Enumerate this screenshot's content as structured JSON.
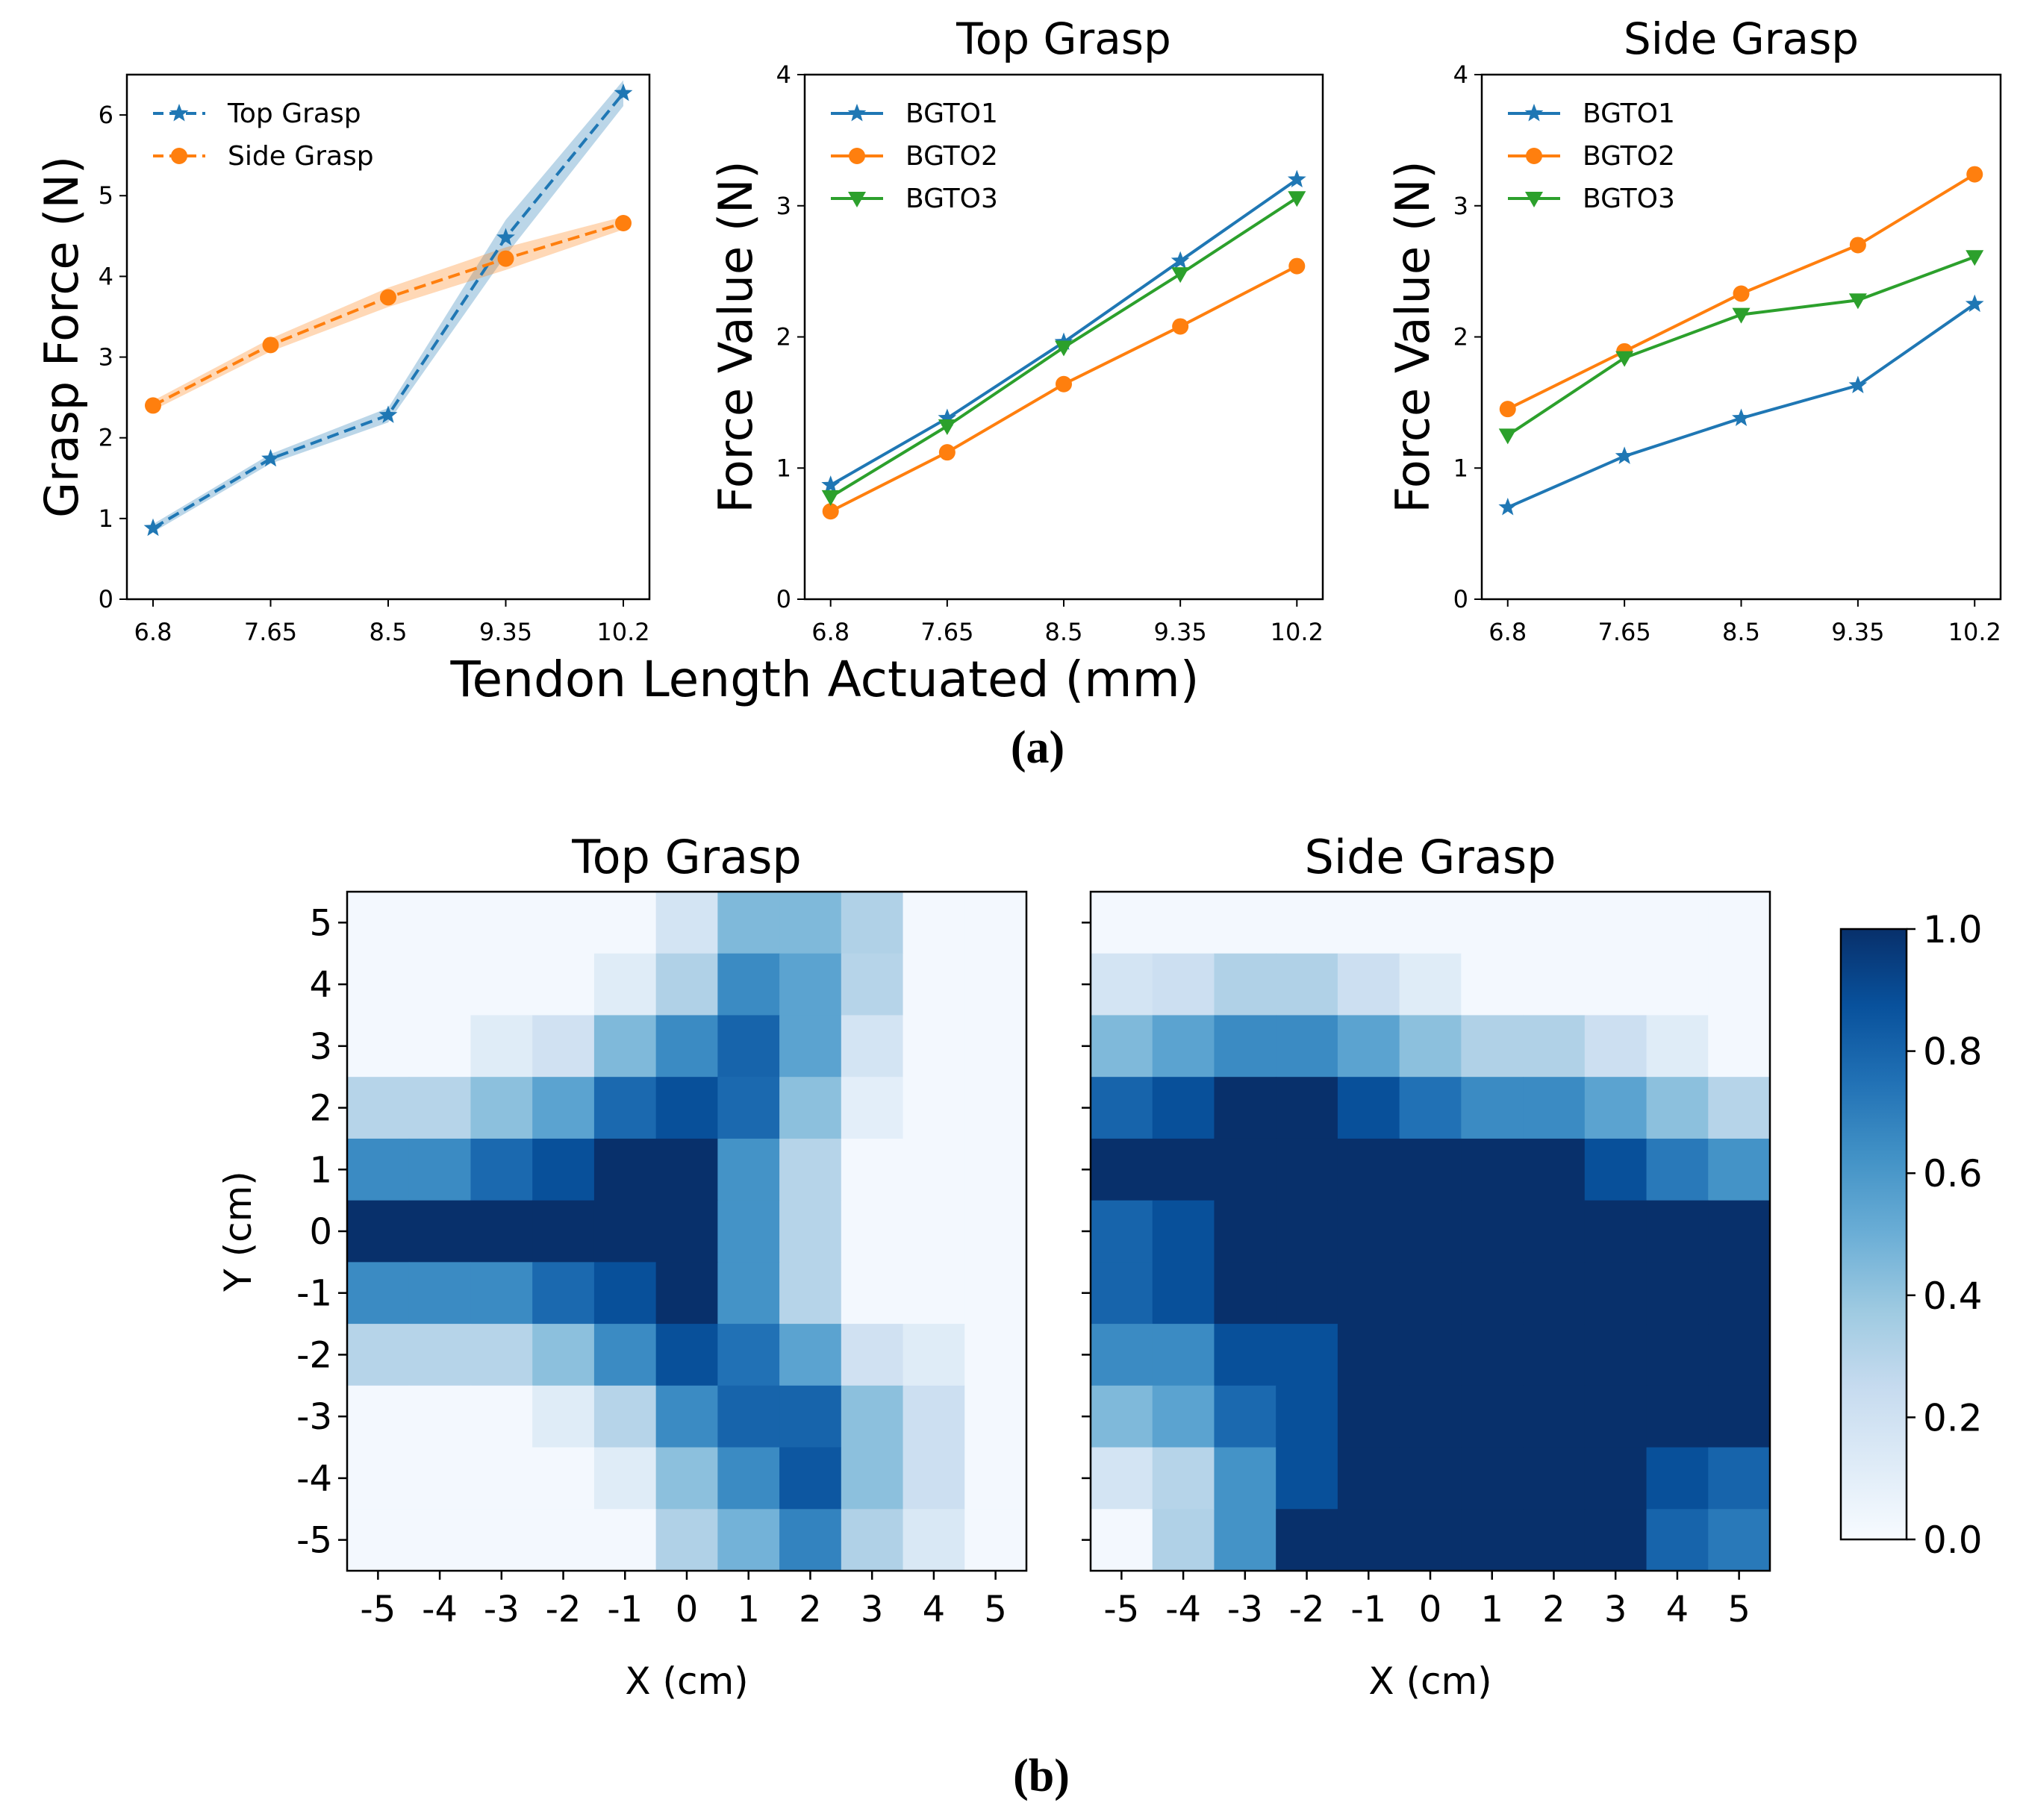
{
  "chart_data": [
    {
      "id": "grasp_force",
      "type": "line",
      "title": "",
      "xlabel": "",
      "ylabel": "Grasp Force (N)",
      "categories": [
        "6.8",
        "7.65",
        "8.5",
        "9.35",
        "10.2"
      ],
      "ylim": [
        0,
        6.5
      ],
      "yticks": [
        "0",
        "1",
        "2",
        "3",
        "4",
        "5",
        "6"
      ],
      "legend_position": "upper-left",
      "series": [
        {
          "name": "Top Grasp",
          "values": [
            0.88,
            1.74,
            2.28,
            4.48,
            6.27
          ],
          "band": [
            0.05,
            0.06,
            0.09,
            0.22,
            0.16
          ],
          "color": "#1f77b4",
          "marker": "star",
          "dashed": true
        },
        {
          "name": "Side Grasp",
          "values": [
            2.4,
            3.15,
            3.74,
            4.22,
            4.66
          ],
          "band": [
            0.06,
            0.08,
            0.12,
            0.14,
            0.08
          ],
          "color": "#ff7f0e",
          "marker": "circle",
          "dashed": true
        }
      ]
    },
    {
      "id": "top_grasp_fingers",
      "type": "line",
      "title": "Top Grasp",
      "xlabel": "",
      "ylabel": "Force Value (N)",
      "categories": [
        "6.8",
        "7.65",
        "8.5",
        "9.35",
        "10.2"
      ],
      "ylim": [
        0,
        4
      ],
      "yticks": [
        "0",
        "1",
        "2",
        "3",
        "4"
      ],
      "legend_position": "upper-left",
      "series": [
        {
          "name": "BGTO1",
          "values": [
            0.87,
            1.38,
            1.96,
            2.58,
            3.2
          ],
          "color": "#1f77b4",
          "marker": "star"
        },
        {
          "name": "BGTO2",
          "values": [
            0.67,
            1.12,
            1.64,
            2.08,
            2.54
          ],
          "color": "#ff7f0e",
          "marker": "circle"
        },
        {
          "name": "BGTO3",
          "values": [
            0.78,
            1.32,
            1.92,
            2.48,
            3.06
          ],
          "color": "#2ca02c",
          "marker": "tri_down"
        }
      ]
    },
    {
      "id": "side_grasp_fingers",
      "type": "line",
      "title": "Side Grasp",
      "xlabel": "",
      "ylabel": "Force Value (N)",
      "categories": [
        "6.8",
        "7.65",
        "8.5",
        "9.35",
        "10.2"
      ],
      "ylim": [
        0,
        4
      ],
      "yticks": [
        "0",
        "1",
        "2",
        "3",
        "4"
      ],
      "legend_position": "upper-left",
      "series": [
        {
          "name": "BGTO1",
          "values": [
            0.7,
            1.09,
            1.38,
            1.63,
            2.25
          ],
          "color": "#1f77b4",
          "marker": "star"
        },
        {
          "name": "BGTO2",
          "values": [
            1.45,
            1.89,
            2.33,
            2.7,
            3.24
          ],
          "color": "#ff7f0e",
          "marker": "circle"
        },
        {
          "name": "BGTO3",
          "values": [
            1.25,
            1.84,
            2.17,
            2.28,
            2.61
          ],
          "color": "#2ca02c",
          "marker": "tri_down"
        }
      ]
    },
    {
      "id": "heatmap_top",
      "type": "heatmap",
      "title": "Top Grasp",
      "xlabel": "X (cm)",
      "ylabel": "Y (cm)",
      "x": [
        "-5",
        "-4",
        "-3",
        "-2",
        "-1",
        "0",
        "1",
        "2",
        "3",
        "4",
        "5"
      ],
      "y": [
        "5",
        "4",
        "3",
        "2",
        "1",
        "0",
        "-1",
        "-2",
        "-3",
        "-4",
        "-5"
      ],
      "values": [
        [
          0.02,
          0.02,
          0.02,
          0.02,
          0.02,
          0.18,
          0.45,
          0.45,
          0.32,
          0.02,
          0.02
        ],
        [
          0.02,
          0.02,
          0.02,
          0.02,
          0.12,
          0.32,
          0.65,
          0.55,
          0.3,
          0.02,
          0.02
        ],
        [
          0.02,
          0.02,
          0.12,
          0.2,
          0.45,
          0.65,
          0.8,
          0.55,
          0.18,
          0.02,
          0.02
        ],
        [
          0.3,
          0.3,
          0.42,
          0.55,
          0.78,
          0.88,
          0.78,
          0.42,
          0.1,
          0.02,
          0.02
        ],
        [
          0.65,
          0.65,
          0.78,
          0.88,
          1.0,
          1.0,
          0.62,
          0.3,
          0.02,
          0.02,
          0.02
        ],
        [
          1.0,
          1.0,
          1.0,
          1.0,
          1.0,
          1.0,
          0.62,
          0.3,
          0.02,
          0.02,
          0.02
        ],
        [
          0.65,
          0.65,
          0.65,
          0.78,
          0.88,
          1.0,
          0.62,
          0.3,
          0.02,
          0.02,
          0.02
        ],
        [
          0.3,
          0.3,
          0.3,
          0.42,
          0.65,
          0.88,
          0.75,
          0.55,
          0.2,
          0.12,
          0.02
        ],
        [
          0.02,
          0.02,
          0.02,
          0.12,
          0.3,
          0.65,
          0.8,
          0.8,
          0.42,
          0.22,
          0.02
        ],
        [
          0.02,
          0.02,
          0.02,
          0.02,
          0.12,
          0.42,
          0.65,
          0.85,
          0.42,
          0.22,
          0.02
        ],
        [
          0.02,
          0.02,
          0.02,
          0.02,
          0.02,
          0.32,
          0.48,
          0.68,
          0.32,
          0.15,
          0.02
        ]
      ],
      "vmin": 0,
      "vmax": 1
    },
    {
      "id": "heatmap_side",
      "type": "heatmap",
      "title": "Side Grasp",
      "xlabel": "X (cm)",
      "ylabel": "",
      "x": [
        "-5",
        "-4",
        "-3",
        "-2",
        "-1",
        "0",
        "1",
        "2",
        "3",
        "4",
        "5"
      ],
      "y": [
        "5",
        "4",
        "3",
        "2",
        "1",
        "0",
        "-1",
        "-2",
        "-3",
        "-4",
        "-5"
      ],
      "values": [
        [
          0.02,
          0.02,
          0.02,
          0.02,
          0.02,
          0.02,
          0.02,
          0.02,
          0.02,
          0.02,
          0.02
        ],
        [
          0.18,
          0.22,
          0.32,
          0.32,
          0.22,
          0.12,
          0.02,
          0.02,
          0.02,
          0.02,
          0.02
        ],
        [
          0.45,
          0.55,
          0.65,
          0.65,
          0.55,
          0.42,
          0.32,
          0.32,
          0.22,
          0.12,
          0.02
        ],
        [
          0.8,
          0.88,
          1.0,
          1.0,
          0.88,
          0.75,
          0.65,
          0.65,
          0.55,
          0.42,
          0.3
        ],
        [
          1.0,
          1.0,
          1.0,
          1.0,
          1.0,
          1.0,
          1.0,
          1.0,
          0.88,
          0.72,
          0.62
        ],
        [
          0.8,
          0.88,
          1.0,
          1.0,
          1.0,
          1.0,
          1.0,
          1.0,
          1.0,
          1.0,
          1.0
        ],
        [
          0.8,
          0.88,
          1.0,
          1.0,
          1.0,
          1.0,
          1.0,
          1.0,
          1.0,
          1.0,
          1.0
        ],
        [
          0.65,
          0.65,
          0.88,
          0.88,
          1.0,
          1.0,
          1.0,
          1.0,
          1.0,
          1.0,
          1.0
        ],
        [
          0.45,
          0.55,
          0.78,
          0.88,
          1.0,
          1.0,
          1.0,
          1.0,
          1.0,
          1.0,
          1.0
        ],
        [
          0.18,
          0.3,
          0.62,
          0.88,
          1.0,
          1.0,
          1.0,
          1.0,
          1.0,
          0.88,
          0.8
        ],
        [
          0.02,
          0.32,
          0.62,
          1.0,
          1.0,
          1.0,
          1.0,
          1.0,
          1.0,
          0.8,
          0.72
        ]
      ],
      "vmin": 0,
      "vmax": 1
    }
  ],
  "shared": {
    "xlabel_a": "Tendon Length Actuated (mm)",
    "label_a": "(a)",
    "label_b": "(b)",
    "colorbar": {
      "ticks": [
        "0.0",
        "0.2",
        "0.4",
        "0.6",
        "0.8",
        "1.0"
      ],
      "min": 0,
      "max": 1
    }
  },
  "colors": {
    "axis": "#000000",
    "colormap_Blues": [
      "#f7fbff",
      "#deebf7",
      "#c6dbef",
      "#9ecae1",
      "#6baed6",
      "#4292c6",
      "#2171b5",
      "#08519c",
      "#08306b"
    ]
  }
}
